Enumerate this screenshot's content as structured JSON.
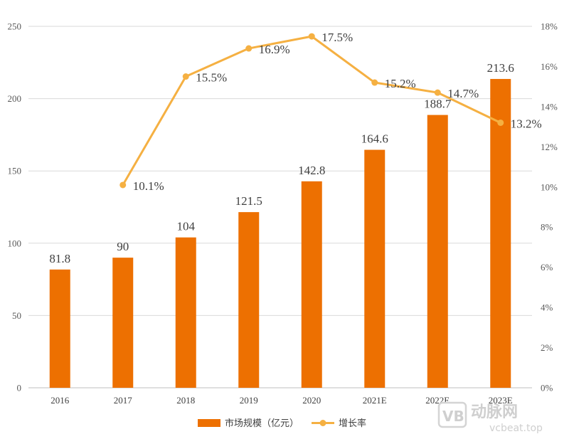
{
  "chart_data": {
    "type": "bar+line",
    "categories": [
      "2016",
      "2017",
      "2018",
      "2019",
      "2020",
      "2021E",
      "2022E",
      "2023E"
    ],
    "series": [
      {
        "name": "市场规模（亿元）",
        "type": "bar",
        "axis": "left",
        "values": [
          81.8,
          90,
          104,
          121.5,
          142.8,
          164.6,
          188.7,
          213.6
        ],
        "labels": [
          "81.8",
          "90",
          "104",
          "121.5",
          "142.8",
          "164.6",
          "188.7",
          "213.6"
        ],
        "color": "#ED7001"
      },
      {
        "name": "增长率",
        "type": "line",
        "axis": "right",
        "values": [
          null,
          10.1,
          15.5,
          16.9,
          17.5,
          15.2,
          14.7,
          13.2
        ],
        "labels": [
          "",
          "10.1%",
          "15.5%",
          "16.9%",
          "17.5%",
          "15.2%",
          "14.7%",
          "13.2%"
        ],
        "color": "#F5B042"
      }
    ],
    "y_left": {
      "min": 0,
      "max": 250,
      "ticks": [
        "0",
        "50",
        "100",
        "150",
        "200",
        "250"
      ]
    },
    "y_right": {
      "min": 0,
      "max": 18,
      "ticks": [
        "0%",
        "2%",
        "4%",
        "6%",
        "8%",
        "10%",
        "12%",
        "14%",
        "16%",
        "18%"
      ]
    },
    "grid": true,
    "legend_position": "bottom",
    "gridline_color": "#d9d9d9"
  },
  "watermark": {
    "text": "动脉网",
    "url": "vcbeat.top"
  }
}
